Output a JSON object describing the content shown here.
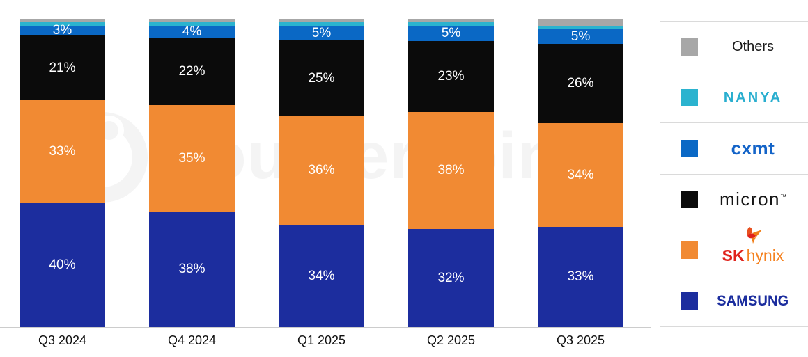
{
  "chart_data": {
    "type": "bar",
    "variant": "stacked-100-percent",
    "categories": [
      "Q3 2024",
      "Q4 2024",
      "Q1 2025",
      "Q2 2025",
      "Q3 2025"
    ],
    "series": [
      {
        "name": "Samsung",
        "color": "#1c2d9e",
        "values": [
          40,
          38,
          34,
          32,
          33
        ],
        "labeled": true
      },
      {
        "name": "SK hynix",
        "color": "#f18a33",
        "values": [
          33,
          35,
          36,
          38,
          34
        ],
        "labeled": true
      },
      {
        "name": "Micron",
        "color": "#0b0b0b",
        "values": [
          21,
          22,
          25,
          23,
          26
        ],
        "labeled": true
      },
      {
        "name": "CXMT",
        "color": "#0a68c5",
        "values": [
          3,
          4,
          5,
          5,
          5
        ],
        "labeled": true
      },
      {
        "name": "Nanya",
        "color": "#2bb3cf",
        "values": [
          1,
          1,
          1,
          1,
          1
        ],
        "labeled": false,
        "note": "thin unlabeled slice, value estimated from pixel height"
      },
      {
        "name": "Others",
        "color": "#a7a7a7",
        "values": [
          1,
          1,
          1,
          1,
          2
        ],
        "labeled": false,
        "note": "thin unlabeled slice, value estimated from pixel height"
      }
    ],
    "stack_order_bottom_to_top": [
      "Samsung",
      "SK hynix",
      "Micron",
      "CXMT",
      "Nanya",
      "Others"
    ],
    "value_suffix": "%",
    "ylim": [
      0,
      100
    ],
    "grid": false,
    "legend_position": "right",
    "title": ""
  },
  "legend": {
    "items": [
      {
        "label": "Others",
        "swatch": "#a7a7a7"
      },
      {
        "label": "NANYA",
        "swatch": "#2bb3cf"
      },
      {
        "label": "cxmt",
        "swatch": "#0a68c5"
      },
      {
        "label": "micron",
        "tm": "™",
        "swatch": "#0b0b0b"
      },
      {
        "sk": "SK",
        "hynix": "hynix",
        "swatch": "#f18a33"
      },
      {
        "label": "SAMSUNG",
        "swatch": "#1c2d9e"
      }
    ]
  },
  "watermark": {
    "text": "Counterpoint"
  },
  "colors": {
    "axis_line": "#cccccc",
    "legend_divider": "#dadada",
    "bar_label_text": "#ffffff",
    "x_label_text": "#111111",
    "sk_red": "#e0231c",
    "sk_orange": "#f58220",
    "nanya_cyan": "#29aecf",
    "cxmt_blue": "#1464c8",
    "samsung_blue": "#1b2d9e",
    "watermark_gray": "#f4f4f4"
  }
}
